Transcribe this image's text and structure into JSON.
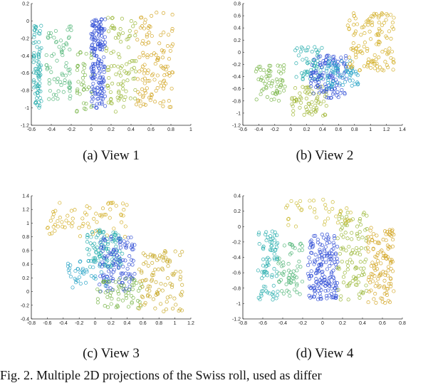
{
  "figure": {
    "caption_text": "Fig. 2. Multiple 2D projections of the Swiss roll, used as differ"
  },
  "chart_data": [
    {
      "type": "scatter",
      "subcaption": "(a) View 1",
      "xlim": [
        -0.6,
        1
      ],
      "ylim": [
        -1.2,
        0.2
      ],
      "xticks": [
        "-0.6",
        "-0.4",
        "-0.2",
        "0",
        "0.2",
        "0.4",
        "0.6",
        "0.8",
        "1"
      ],
      "yticks": [
        "0.2",
        "0",
        "-0.2",
        "-0.4",
        "-0.6",
        "-0.8",
        "-1",
        "-1.2"
      ],
      "grid": false,
      "regions": [
        {
          "cx": [
            -0.58,
            -0.5
          ],
          "cy": [
            -1.0,
            -0.05
          ],
          "n": 80,
          "color": "#2fb0b0"
        },
        {
          "cx": [
            -0.45,
            -0.2
          ],
          "cy": [
            -0.9,
            -0.05
          ],
          "n": 70,
          "color": "#57b87c"
        },
        {
          "cx": [
            -0.15,
            0.02
          ],
          "cy": [
            -1.05,
            -0.35
          ],
          "n": 40,
          "color": "#7ab64a"
        },
        {
          "cx": [
            0.0,
            0.14
          ],
          "cy": [
            -1.0,
            0.02
          ],
          "n": 170,
          "color": "#3350d6"
        },
        {
          "cx": [
            0.15,
            0.45
          ],
          "cy": [
            -1.05,
            0.05
          ],
          "n": 90,
          "color": "#9bb83a"
        },
        {
          "cx": [
            0.45,
            0.82
          ],
          "cy": [
            -1.0,
            0.1
          ],
          "n": 120,
          "color": "#d4a82a"
        }
      ]
    },
    {
      "type": "scatter",
      "subcaption": "(b) View 2",
      "xlim": [
        -0.6,
        1.4
      ],
      "ylim": [
        -1.2,
        0.8
      ],
      "xticks": [
        "-0.6",
        "-0.4",
        "-0.2",
        "0",
        "0.2",
        "0.4",
        "0.6",
        "0.8",
        "1",
        "1.2",
        "1.4"
      ],
      "yticks": [
        "0.8",
        "0.6",
        "0.4",
        "0.2",
        "0",
        "-0.2",
        "-0.4",
        "-0.6",
        "-0.8",
        "-1",
        "-1.2"
      ],
      "grid": false,
      "regions": [
        {
          "cx": [
            -0.45,
            -0.05
          ],
          "cy": [
            -0.8,
            -0.2
          ],
          "n": 60,
          "color": "#7ab64a"
        },
        {
          "cx": [
            0.0,
            0.45
          ],
          "cy": [
            -1.05,
            -0.55
          ],
          "n": 70,
          "color": "#a2b83a"
        },
        {
          "cx": [
            0.05,
            0.4
          ],
          "cy": [
            -0.45,
            0.1
          ],
          "n": 60,
          "color": "#2fb0b0"
        },
        {
          "cx": [
            0.25,
            0.7
          ],
          "cy": [
            -0.75,
            -0.05
          ],
          "n": 120,
          "color": "#3350d6"
        },
        {
          "cx": [
            0.45,
            0.85
          ],
          "cy": [
            -0.6,
            -0.1
          ],
          "n": 70,
          "color": "#2fa6c8"
        },
        {
          "cx": [
            0.7,
            1.3
          ],
          "cy": [
            -0.3,
            0.65
          ],
          "n": 130,
          "color": "#d4b02a"
        }
      ]
    },
    {
      "type": "scatter",
      "subcaption": "(c) View 3",
      "xlim": [
        -0.8,
        1.2
      ],
      "ylim": [
        -0.4,
        1.4
      ],
      "xticks": [
        "-0.8",
        "-0.6",
        "-0.4",
        "-0.2",
        "0",
        "0.2",
        "0.4",
        "0.6",
        "0.8",
        "1",
        "1.2"
      ],
      "yticks": [
        "1.4",
        "1.2",
        "1",
        "0.8",
        "0.6",
        "0.4",
        "0.2",
        "0",
        "-0.2",
        "-0.4"
      ],
      "grid": false,
      "regions": [
        {
          "cx": [
            -0.6,
            0.4
          ],
          "cy": [
            0.8,
            1.3
          ],
          "n": 70,
          "color": "#d4b02a"
        },
        {
          "cx": [
            -0.1,
            0.35
          ],
          "cy": [
            0.35,
            0.9
          ],
          "n": 110,
          "color": "#2fb0b0"
        },
        {
          "cx": [
            0.05,
            0.5
          ],
          "cy": [
            0.0,
            0.8
          ],
          "n": 120,
          "color": "#3350d6"
        },
        {
          "cx": [
            -0.4,
            0.2
          ],
          "cy": [
            0.05,
            0.45
          ],
          "n": 40,
          "color": "#2fa6c8"
        },
        {
          "cx": [
            0.0,
            0.6
          ],
          "cy": [
            -0.25,
            0.2
          ],
          "n": 60,
          "color": "#7ab64a"
        },
        {
          "cx": [
            0.55,
            1.1
          ],
          "cy": [
            -0.3,
            0.6
          ],
          "n": 100,
          "color": "#c9aa2a"
        }
      ]
    },
    {
      "type": "scatter",
      "subcaption": "(d) View 4",
      "xlim": [
        -0.8,
        0.8
      ],
      "ylim": [
        -1.2,
        0.4
      ],
      "xticks": [
        "-0.8",
        "-0.6",
        "-0.4",
        "-0.2",
        "0",
        "0.2",
        "0.4",
        "0.6",
        "0.8"
      ],
      "yticks": [
        "0.4",
        "0.2",
        "0",
        "-0.2",
        "-0.4",
        "-0.6",
        "-0.8",
        "-1",
        "-1.2"
      ],
      "grid": false,
      "regions": [
        {
          "cx": [
            -0.65,
            -0.45
          ],
          "cy": [
            -0.95,
            -0.05
          ],
          "n": 80,
          "color": "#2fb0b0"
        },
        {
          "cx": [
            -0.45,
            -0.2
          ],
          "cy": [
            -0.9,
            -0.2
          ],
          "n": 60,
          "color": "#57b87c"
        },
        {
          "cx": [
            -0.15,
            0.15
          ],
          "cy": [
            -0.95,
            -0.1
          ],
          "n": 170,
          "color": "#3350d6"
        },
        {
          "cx": [
            0.15,
            0.45
          ],
          "cy": [
            -1.0,
            0.2
          ],
          "n": 100,
          "color": "#9bb83a"
        },
        {
          "cx": [
            0.45,
            0.72
          ],
          "cy": [
            -1.0,
            0.0
          ],
          "n": 120,
          "color": "#d4a82a"
        },
        {
          "cx": [
            -0.4,
            0.3
          ],
          "cy": [
            0.0,
            0.35
          ],
          "n": 40,
          "color": "#cdbd3a"
        }
      ]
    }
  ]
}
